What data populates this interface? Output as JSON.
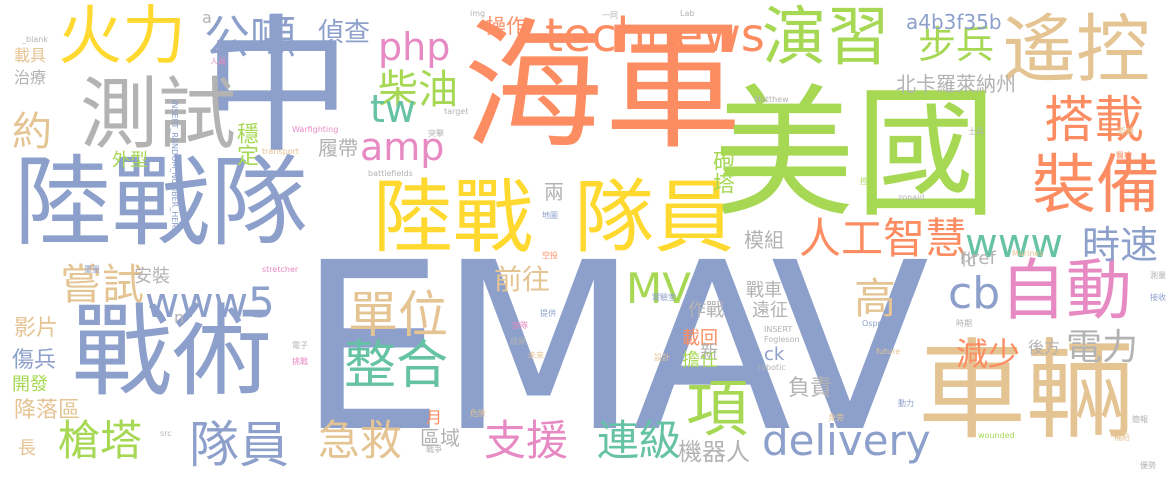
{
  "words": [
    {
      "text": "EMAV",
      "color": "#8da0cb"
    },
    {
      "text": "海軍",
      "color": "#fc8d62"
    },
    {
      "text": "美國",
      "color": "#a6d854"
    },
    {
      "text": "中",
      "color": "#8da0cb"
    },
    {
      "text": "陸戰隊",
      "color": "#8da0cb"
    },
    {
      "text": "車輛",
      "color": "#e5c494"
    },
    {
      "text": "戰術",
      "color": "#8da0cb"
    },
    {
      "text": "陸戰",
      "color": "#ffd92f"
    },
    {
      "text": "隊員",
      "color": "#ffd92f"
    },
    {
      "text": "遙控",
      "color": "#e5c494"
    },
    {
      "text": "演習",
      "color": "#a6d854"
    },
    {
      "text": "測試",
      "color": "#b3b3b3"
    },
    {
      "text": "火力",
      "color": "#ffd92f"
    },
    {
      "text": "自動",
      "color": "#e78ac3"
    },
    {
      "text": "裝備",
      "color": "#fc8d62"
    },
    {
      "text": "搭載",
      "color": "#fc8d62"
    },
    {
      "text": "technews",
      "color": "#fc8d62"
    },
    {
      "text": "人工智慧",
      "color": "#fc8d62"
    },
    {
      "text": "www5",
      "color": "#8da0cb"
    },
    {
      "text": "www",
      "color": "#66c2a5"
    },
    {
      "text": "時速",
      "color": "#8da0cb"
    },
    {
      "text": "delivery",
      "color": "#8da0cb"
    },
    {
      "text": "整合",
      "color": "#66c2a5"
    },
    {
      "text": "隊員",
      "color": "#8da0cb"
    },
    {
      "text": "槍塔",
      "color": "#a6d854"
    },
    {
      "text": "急救",
      "color": "#e5c494"
    },
    {
      "text": "支援",
      "color": "#e78ac3"
    },
    {
      "text": "連級",
      "color": "#66c2a5"
    },
    {
      "text": "項",
      "color": "#a6d854"
    },
    {
      "text": "單位",
      "color": "#e5c494"
    },
    {
      "text": "嘗試",
      "color": "#e5c494"
    },
    {
      "text": "cb",
      "color": "#8da0cb"
    },
    {
      "text": "公噸",
      "color": "#8da0cb"
    },
    {
      "text": "php",
      "color": "#e78ac3"
    },
    {
      "text": "柴油",
      "color": "#a6d854"
    },
    {
      "text": "amp",
      "color": "#e78ac3"
    },
    {
      "text": "tw",
      "color": "#66c2a5"
    },
    {
      "text": "步兵",
      "color": "#a6d854"
    },
    {
      "text": "約",
      "color": "#e5c494"
    },
    {
      "text": "MV",
      "color": "#a6d854"
    },
    {
      "text": "高",
      "color": "#e5c494"
    },
    {
      "text": "前往",
      "color": "#e5c494"
    },
    {
      "text": "電力",
      "color": "#b3b3b3"
    },
    {
      "text": "減少",
      "color": "#fc8d62"
    },
    {
      "text": "偵查",
      "color": "#8da0cb"
    },
    {
      "text": "操作",
      "color": "#fc8d62"
    },
    {
      "text": "a4b3f35b",
      "color": "#8da0cb"
    },
    {
      "text": "北卡羅萊納州",
      "color": "#b3b3b3"
    },
    {
      "text": "穩定",
      "color": "#a6d854"
    },
    {
      "text": "履帶",
      "color": "#b3b3b3"
    },
    {
      "text": "外型",
      "color": "#a6d854"
    },
    {
      "text": "兩",
      "color": "#b3b3b3"
    },
    {
      "text": "砲塔",
      "color": "#a6d854"
    },
    {
      "text": "模組",
      "color": "#b3b3b3"
    },
    {
      "text": "影片",
      "color": "#e5c494"
    },
    {
      "text": "傷兵",
      "color": "#8da0cb"
    },
    {
      "text": "開發",
      "color": "#a6d854"
    },
    {
      "text": "降落區",
      "color": "#e5c494"
    },
    {
      "text": "區域",
      "color": "#b3b3b3"
    },
    {
      "text": "機器人",
      "color": "#b3b3b3"
    },
    {
      "text": "作戰",
      "color": "#b3b3b3"
    },
    {
      "text": "安裝",
      "color": "#b3b3b3"
    },
    {
      "text": "戰車",
      "color": "#b3b3b3"
    },
    {
      "text": "遠征",
      "color": "#b3b3b3"
    },
    {
      "text": "載回",
      "color": "#fc8d62"
    },
    {
      "text": "擔任",
      "color": "#a6d854"
    },
    {
      "text": "負責",
      "color": "#b3b3b3"
    },
    {
      "text": "後方",
      "color": "#b3b3b3"
    },
    {
      "text": "ck",
      "color": "#8da0cb"
    },
    {
      "text": "href",
      "color": "#b3b3b3"
    },
    {
      "text": "新",
      "color": "#b3b3b3"
    },
    {
      "text": "月",
      "color": "#fc8d62"
    },
    {
      "text": "長",
      "color": "#e5c494"
    },
    {
      "text": "治療",
      "color": "#b3b3b3"
    },
    {
      "text": "載具",
      "color": "#e5c494"
    },
    {
      "text": "n",
      "color": "#b3b3b3"
    },
    {
      "text": "a",
      "color": "#b3b3b3"
    },
    {
      "text": "化",
      "color": "#b3b3b3"
    },
    {
      "text": "INSERT_RANDOM_NUMBER_HERE",
      "color": "#8da0cb"
    },
    {
      "text": "Warfighting",
      "color": "#e78ac3"
    },
    {
      "text": "transport",
      "color": "#e5c494"
    },
    {
      "text": "battlefields",
      "color": "#b3b3b3"
    },
    {
      "text": "target",
      "color": "#b3b3b3"
    },
    {
      "text": "Matthew",
      "color": "#b3b3b3"
    },
    {
      "text": "zonaid",
      "color": "#b3b3b3"
    },
    {
      "text": "Fogleson",
      "color": "#b3b3b3"
    },
    {
      "text": "robotic",
      "color": "#b3b3b3"
    },
    {
      "text": "Osprey",
      "color": "#8da0cb"
    },
    {
      "text": "stretcher",
      "color": "#e78ac3"
    },
    {
      "text": "wounded",
      "color": "#a6d854"
    },
    {
      "text": "Marines",
      "color": "#e5c494"
    },
    {
      "text": "future",
      "color": "#e5c494"
    },
    {
      "text": "INSERT",
      "color": "#b3b3b3"
    },
    {
      "text": "src",
      "color": "#b3b3b3"
    },
    {
      "text": "img",
      "color": "#b3b3b3"
    },
    {
      "text": "Lab",
      "color": "#b3b3b3"
    },
    {
      "text": "_blank",
      "color": "#b3b3b3"
    },
    {
      "text": "人員",
      "color": "#e78ac3"
    },
    {
      "text": "設計",
      "color": "#e5c494"
    },
    {
      "text": "未來",
      "color": "#e5c494"
    },
    {
      "text": "提供",
      "color": "#8da0cb"
    },
    {
      "text": "部隊",
      "color": "#e78ac3"
    },
    {
      "text": "成果",
      "color": "#b3b3b3"
    },
    {
      "text": "實驗室",
      "color": "#8da0cb"
    },
    {
      "text": "地圖",
      "color": "#8da0cb"
    },
    {
      "text": "危險",
      "color": "#e5c494"
    },
    {
      "text": "空投",
      "color": "#fc8d62"
    },
    {
      "text": "動力",
      "color": "#8da0cb"
    },
    {
      "text": "身旁",
      "color": "#e5c494"
    },
    {
      "text": "時期",
      "color": "#b3b3b3"
    },
    {
      "text": "電子",
      "color": "#b3b3b3"
    },
    {
      "text": "補給",
      "color": "#e5c494"
    },
    {
      "text": "氣墊船",
      "color": "#8da0cb"
    },
    {
      "text": "戰爭",
      "color": "#b3b3b3"
    },
    {
      "text": "挑戰",
      "color": "#e78ac3"
    },
    {
      "text": "一同",
      "color": "#b3b3b3"
    },
    {
      "text": "突擊",
      "color": "#b3b3b3"
    },
    {
      "text": "簡報",
      "color": "#b3b3b3"
    },
    {
      "text": "優勢",
      "color": "#b3b3b3"
    },
    {
      "text": "測量",
      "color": "#b3b3b3"
    },
    {
      "text": "接收",
      "color": "#8da0cb"
    },
    {
      "text": "醫療",
      "color": "#fc8d62"
    },
    {
      "text": "重量",
      "color": "#8da0cb"
    },
    {
      "text": "控制",
      "color": "#a6d854"
    },
    {
      "text": "距離",
      "color": "#e5c494"
    },
    {
      "text": "士兵",
      "color": "#b3b3b3"
    }
  ]
}
